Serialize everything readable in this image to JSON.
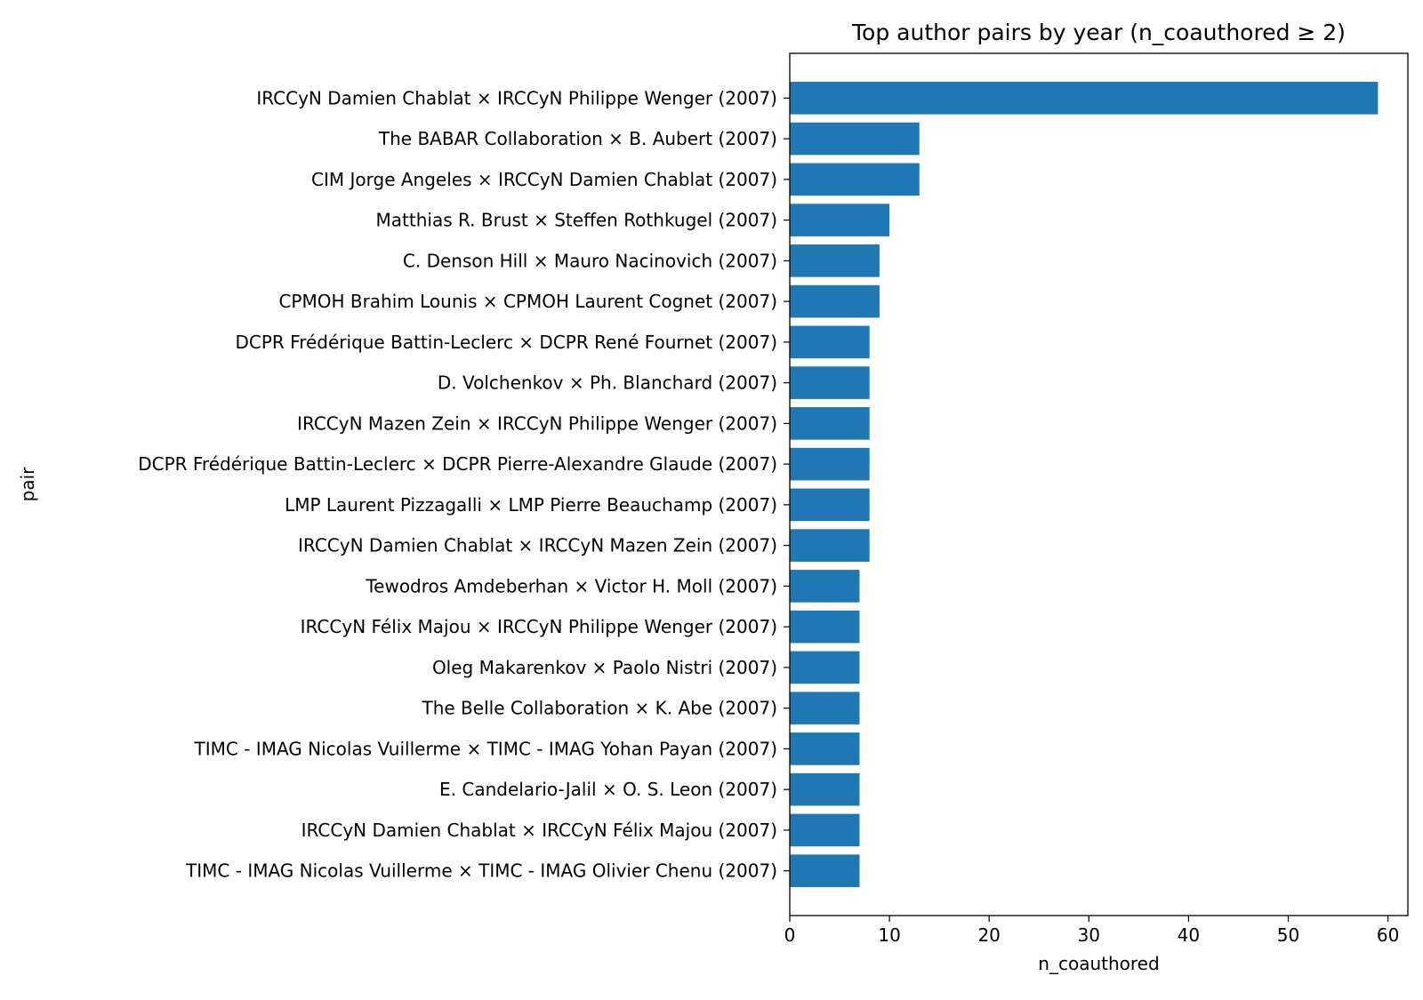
{
  "chart_data": {
    "type": "bar",
    "orientation": "horizontal",
    "title": "Top author pairs by year (n_coauthored ≥ 2)",
    "xlabel": "n_coauthored",
    "ylabel": "pair",
    "xlim": [
      0,
      62
    ],
    "xticks": [
      0,
      10,
      20,
      30,
      40,
      50,
      60
    ],
    "grid": false,
    "bar_color": "#1f77b4",
    "categories": [
      "IRCCyN  Damien Chablat × IRCCyN  Philippe Wenger (2007)",
      "The BABAR Collaboration ×  B. Aubert (2007)",
      "CIM  Jorge Angeles × IRCCyN  Damien Chablat (2007)",
      "Matthias R. Brust ×  Steffen Rothkugel (2007)",
      "C. Denson Hill ×  Mauro Nacinovich (2007)",
      "CPMOH  Brahim Lounis × CPMOH  Laurent Cognet (2007)",
      "DCPR  Frédérique Battin-Leclerc × DCPR  René Fournet (2007)",
      "D. Volchenkov ×  Ph. Blanchard (2007)",
      "IRCCyN  Mazen Zein × IRCCyN  Philippe Wenger (2007)",
      "DCPR  Frédérique Battin-Leclerc × DCPR  Pierre-Alexandre Glaude (2007)",
      "LMP  Laurent Pizzagalli × LMP  Pierre Beauchamp (2007)",
      "IRCCyN  Damien Chablat × IRCCyN  Mazen Zein (2007)",
      "Tewodros Amdeberhan ×  Victor H. Moll (2007)",
      "IRCCyN  Félix Majou × IRCCyN  Philippe Wenger (2007)",
      "Oleg Makarenkov ×  Paolo Nistri (2007)",
      "The Belle Collaboration ×  K. Abe (2007)",
      "TIMC - IMAG  Nicolas Vuillerme × TIMC - IMAG  Yohan Payan (2007)",
      "E. Candelario-Jalil ×  O. S. Leon (2007)",
      "IRCCyN  Damien Chablat × IRCCyN  Félix Majou (2007)",
      "TIMC - IMAG  Nicolas Vuillerme × TIMC - IMAG  Olivier Chenu (2007)"
    ],
    "values": [
      59,
      13,
      13,
      10,
      9,
      9,
      8,
      8,
      8,
      8,
      8,
      8,
      7,
      7,
      7,
      7,
      7,
      7,
      7,
      7
    ]
  }
}
